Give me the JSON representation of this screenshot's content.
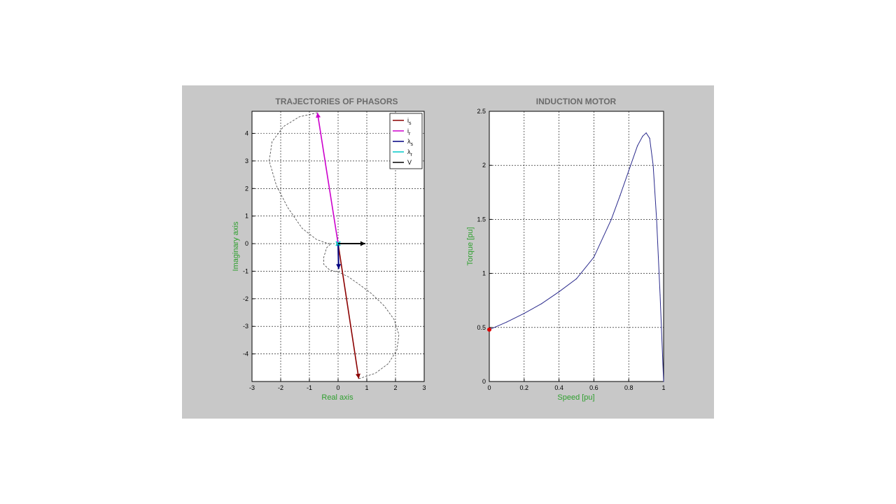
{
  "figure": {
    "background": "#c8c8c8"
  },
  "chart_data": [
    {
      "type": "line",
      "title": "TRAJECTORIES OF PHASORS",
      "xlabel": "Real axis",
      "ylabel": "Imaginary axis",
      "xlim": [
        -3,
        3
      ],
      "ylim": [
        -5,
        4.8
      ],
      "xticks": [
        -3,
        -2,
        -1,
        0,
        1,
        2,
        3
      ],
      "yticks": [
        -4,
        -3,
        -2,
        -1,
        0,
        1,
        2,
        3,
        4
      ],
      "grid": true,
      "legend_position": "top-right",
      "legend": [
        {
          "base": "i",
          "sub": "s",
          "color": "#8b0000"
        },
        {
          "base": "i",
          "sub": "r",
          "color": "#cc00cc"
        },
        {
          "base": "λ",
          "sub": "s",
          "color": "#000080"
        },
        {
          "base": "λ",
          "sub": "r",
          "color": "#00c8c8"
        },
        {
          "base": "V",
          "sub": "",
          "color": "#000000"
        }
      ],
      "phasors": [
        {
          "name": "i_s",
          "color": "#8b0000",
          "x": 0.72,
          "y": -4.9,
          "width": 1.6
        },
        {
          "name": "i_r",
          "color": "#cc00cc",
          "x": -0.72,
          "y": 4.75,
          "width": 1.6
        },
        {
          "name": "λ_s",
          "color": "#000080",
          "x": 0.02,
          "y": -0.92,
          "width": 2
        },
        {
          "name": "λ_r",
          "color": "#00c8c8",
          "x": 0.0,
          "y": 0.0,
          "width": 2
        },
        {
          "name": "V",
          "color": "#000000",
          "x": 0.95,
          "y": 0.0,
          "width": 2
        }
      ],
      "trajectory": {
        "color": "#444444",
        "points": [
          [
            0.72,
            -4.9
          ],
          [
            1.3,
            -4.7
          ],
          [
            1.75,
            -4.35
          ],
          [
            2.05,
            -3.85
          ],
          [
            2.12,
            -3.3
          ],
          [
            1.95,
            -2.75
          ],
          [
            1.6,
            -2.25
          ],
          [
            1.15,
            -1.8
          ],
          [
            0.7,
            -1.45
          ],
          [
            0.35,
            -1.2
          ],
          [
            0.05,
            -1.05
          ],
          [
            -0.3,
            -0.95
          ],
          [
            -0.5,
            -0.75
          ],
          [
            -0.5,
            -0.5
          ],
          [
            -0.4,
            -0.15
          ],
          [
            -0.25,
            0.0
          ],
          [
            -0.4,
            0.02
          ],
          [
            -0.75,
            0.15
          ],
          [
            -1.25,
            0.55
          ],
          [
            -1.75,
            1.3
          ],
          [
            -2.15,
            2.1
          ],
          [
            -2.4,
            3.0
          ],
          [
            -2.3,
            3.7
          ],
          [
            -1.9,
            4.25
          ],
          [
            -1.35,
            4.6
          ],
          [
            -0.72,
            4.75
          ]
        ]
      }
    },
    {
      "type": "line",
      "title": "INDUCTION MOTOR",
      "xlabel": "Speed [pu]",
      "ylabel": "Torque [pu]",
      "xlim": [
        0,
        1
      ],
      "ylim": [
        0,
        2.5
      ],
      "xticks": [
        0,
        0.2,
        0.4,
        0.6,
        0.8,
        1
      ],
      "yticks": [
        0,
        0.5,
        1,
        1.5,
        2,
        2.5
      ],
      "grid": true,
      "series": [
        {
          "color": "#2a2a8c",
          "x": [
            0,
            0.1,
            0.2,
            0.3,
            0.4,
            0.5,
            0.6,
            0.7,
            0.75,
            0.8,
            0.85,
            0.88,
            0.9,
            0.92,
            0.94,
            0.96,
            0.98,
            1.0
          ],
          "y": [
            0.48,
            0.55,
            0.63,
            0.72,
            0.83,
            0.95,
            1.15,
            1.5,
            1.72,
            1.95,
            2.18,
            2.27,
            2.3,
            2.25,
            2.0,
            1.5,
            0.8,
            0.0
          ]
        }
      ],
      "marker": {
        "x": 0,
        "y": 0.48,
        "color": "#dd0000"
      }
    }
  ]
}
